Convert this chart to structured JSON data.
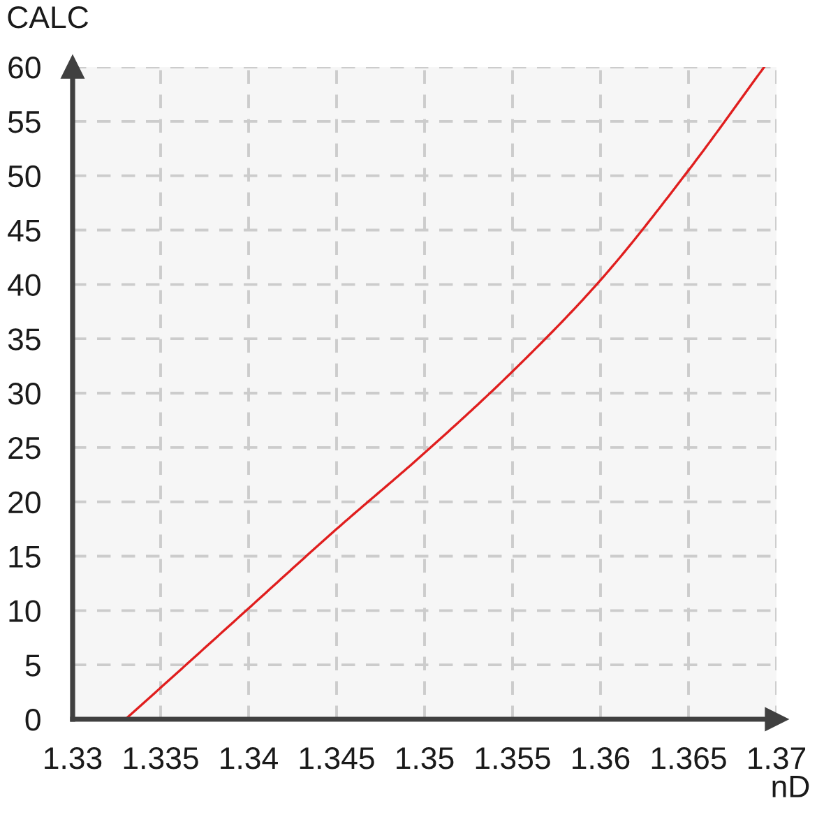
{
  "chart_data": {
    "type": "line",
    "xlabel": "nD",
    "ylabel": "CALC",
    "x": [
      1.333,
      1.335,
      1.34,
      1.345,
      1.35,
      1.355,
      1.36,
      1.365,
      1.3693
    ],
    "series": [
      {
        "color": "#e01e1e",
        "values": [
          0,
          2.9,
          10.2,
          17.5,
          24.5,
          32,
          40.4,
          50.5,
          60
        ]
      }
    ],
    "xlim": [
      1.33,
      1.37
    ],
    "xticks": [
      1.33,
      1.335,
      1.34,
      1.345,
      1.35,
      1.355,
      1.36,
      1.365,
      1.37
    ],
    "ylim": [
      0,
      60
    ],
    "yticks": [
      0,
      5,
      10,
      15,
      20,
      25,
      30,
      35,
      40,
      45,
      50,
      55,
      60
    ],
    "grid": true,
    "line_style": "solid"
  }
}
